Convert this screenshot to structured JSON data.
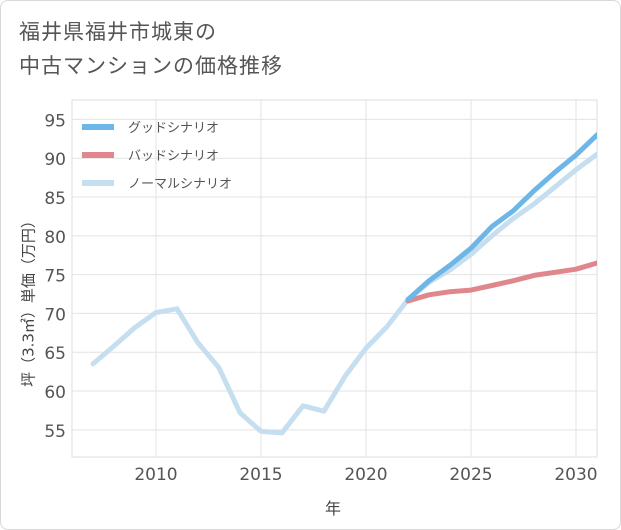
{
  "title_lines": [
    "福井県福井市城東の",
    "中古マンションの価格推移"
  ],
  "chart_data": {
    "type": "line",
    "title": "福井県福井市城東の中古マンションの価格推移",
    "xlabel": "年",
    "ylabel": "坪（3.3㎡）単価（万円）",
    "xlim": [
      2006,
      2031
    ],
    "ylim": [
      51.5,
      97.5
    ],
    "xticks": [
      2010,
      2015,
      2020,
      2025,
      2030
    ],
    "yticks": [
      55,
      60,
      65,
      70,
      75,
      80,
      85,
      90,
      95
    ],
    "grid": true,
    "legend_position": "top-left",
    "series": [
      {
        "name": "グッドシナリオ",
        "color": "#6db6e8",
        "x": [
          2022,
          2023,
          2024,
          2025,
          2026,
          2027,
          2028,
          2029,
          2030,
          2031
        ],
        "values": [
          71.8,
          74.2,
          76.2,
          78.4,
          81.2,
          83.2,
          85.8,
          88.2,
          90.4,
          93.0
        ]
      },
      {
        "name": "バッドシナリオ",
        "color": "#e0868d",
        "x": [
          2022,
          2023,
          2024,
          2025,
          2026,
          2027,
          2028,
          2029,
          2030,
          2031
        ],
        "values": [
          71.6,
          72.4,
          72.8,
          73.0,
          73.6,
          74.2,
          74.9,
          75.3,
          75.7,
          76.5
        ]
      },
      {
        "name": "ノーマルシナリオ",
        "color": "#c6dff0",
        "x": [
          2007,
          2008,
          2009,
          2010,
          2011,
          2012,
          2013,
          2014,
          2015,
          2016,
          2017,
          2018,
          2019,
          2020,
          2021,
          2022,
          2023,
          2024,
          2025,
          2026,
          2027,
          2028,
          2029,
          2030,
          2031
        ],
        "values": [
          63.5,
          65.8,
          68.2,
          70.1,
          70.6,
          66.2,
          63.0,
          57.2,
          54.8,
          54.6,
          58.1,
          57.4,
          61.9,
          65.5,
          68.3,
          71.8,
          74.0,
          75.6,
          77.6,
          80.0,
          82.2,
          84.1,
          86.3,
          88.5,
          90.5
        ]
      }
    ]
  }
}
